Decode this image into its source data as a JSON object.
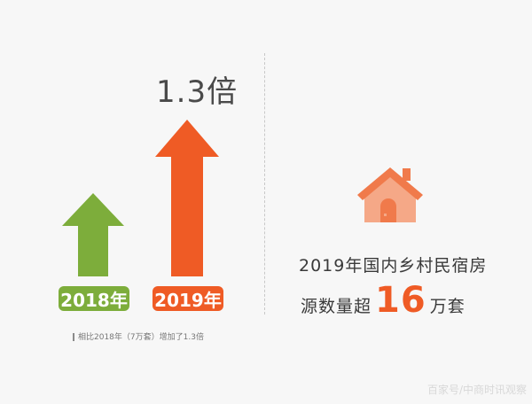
{
  "left": {
    "multiplier": "1.3倍",
    "years": [
      "2018年",
      "2019年"
    ],
    "note": "相比2018年（7万套）增加了1.3倍"
  },
  "right": {
    "headline": "2019年国内乡村民宿房",
    "line2_prefix": "源数量超",
    "highlight_number": "16",
    "line2_suffix": "万套"
  },
  "watermark": "百家号/中商时讯观察",
  "colors": {
    "green": "#7dad3b",
    "orange": "#ef5b25",
    "house_orange": "#f07a4b",
    "house_light": "#f5a887"
  }
}
